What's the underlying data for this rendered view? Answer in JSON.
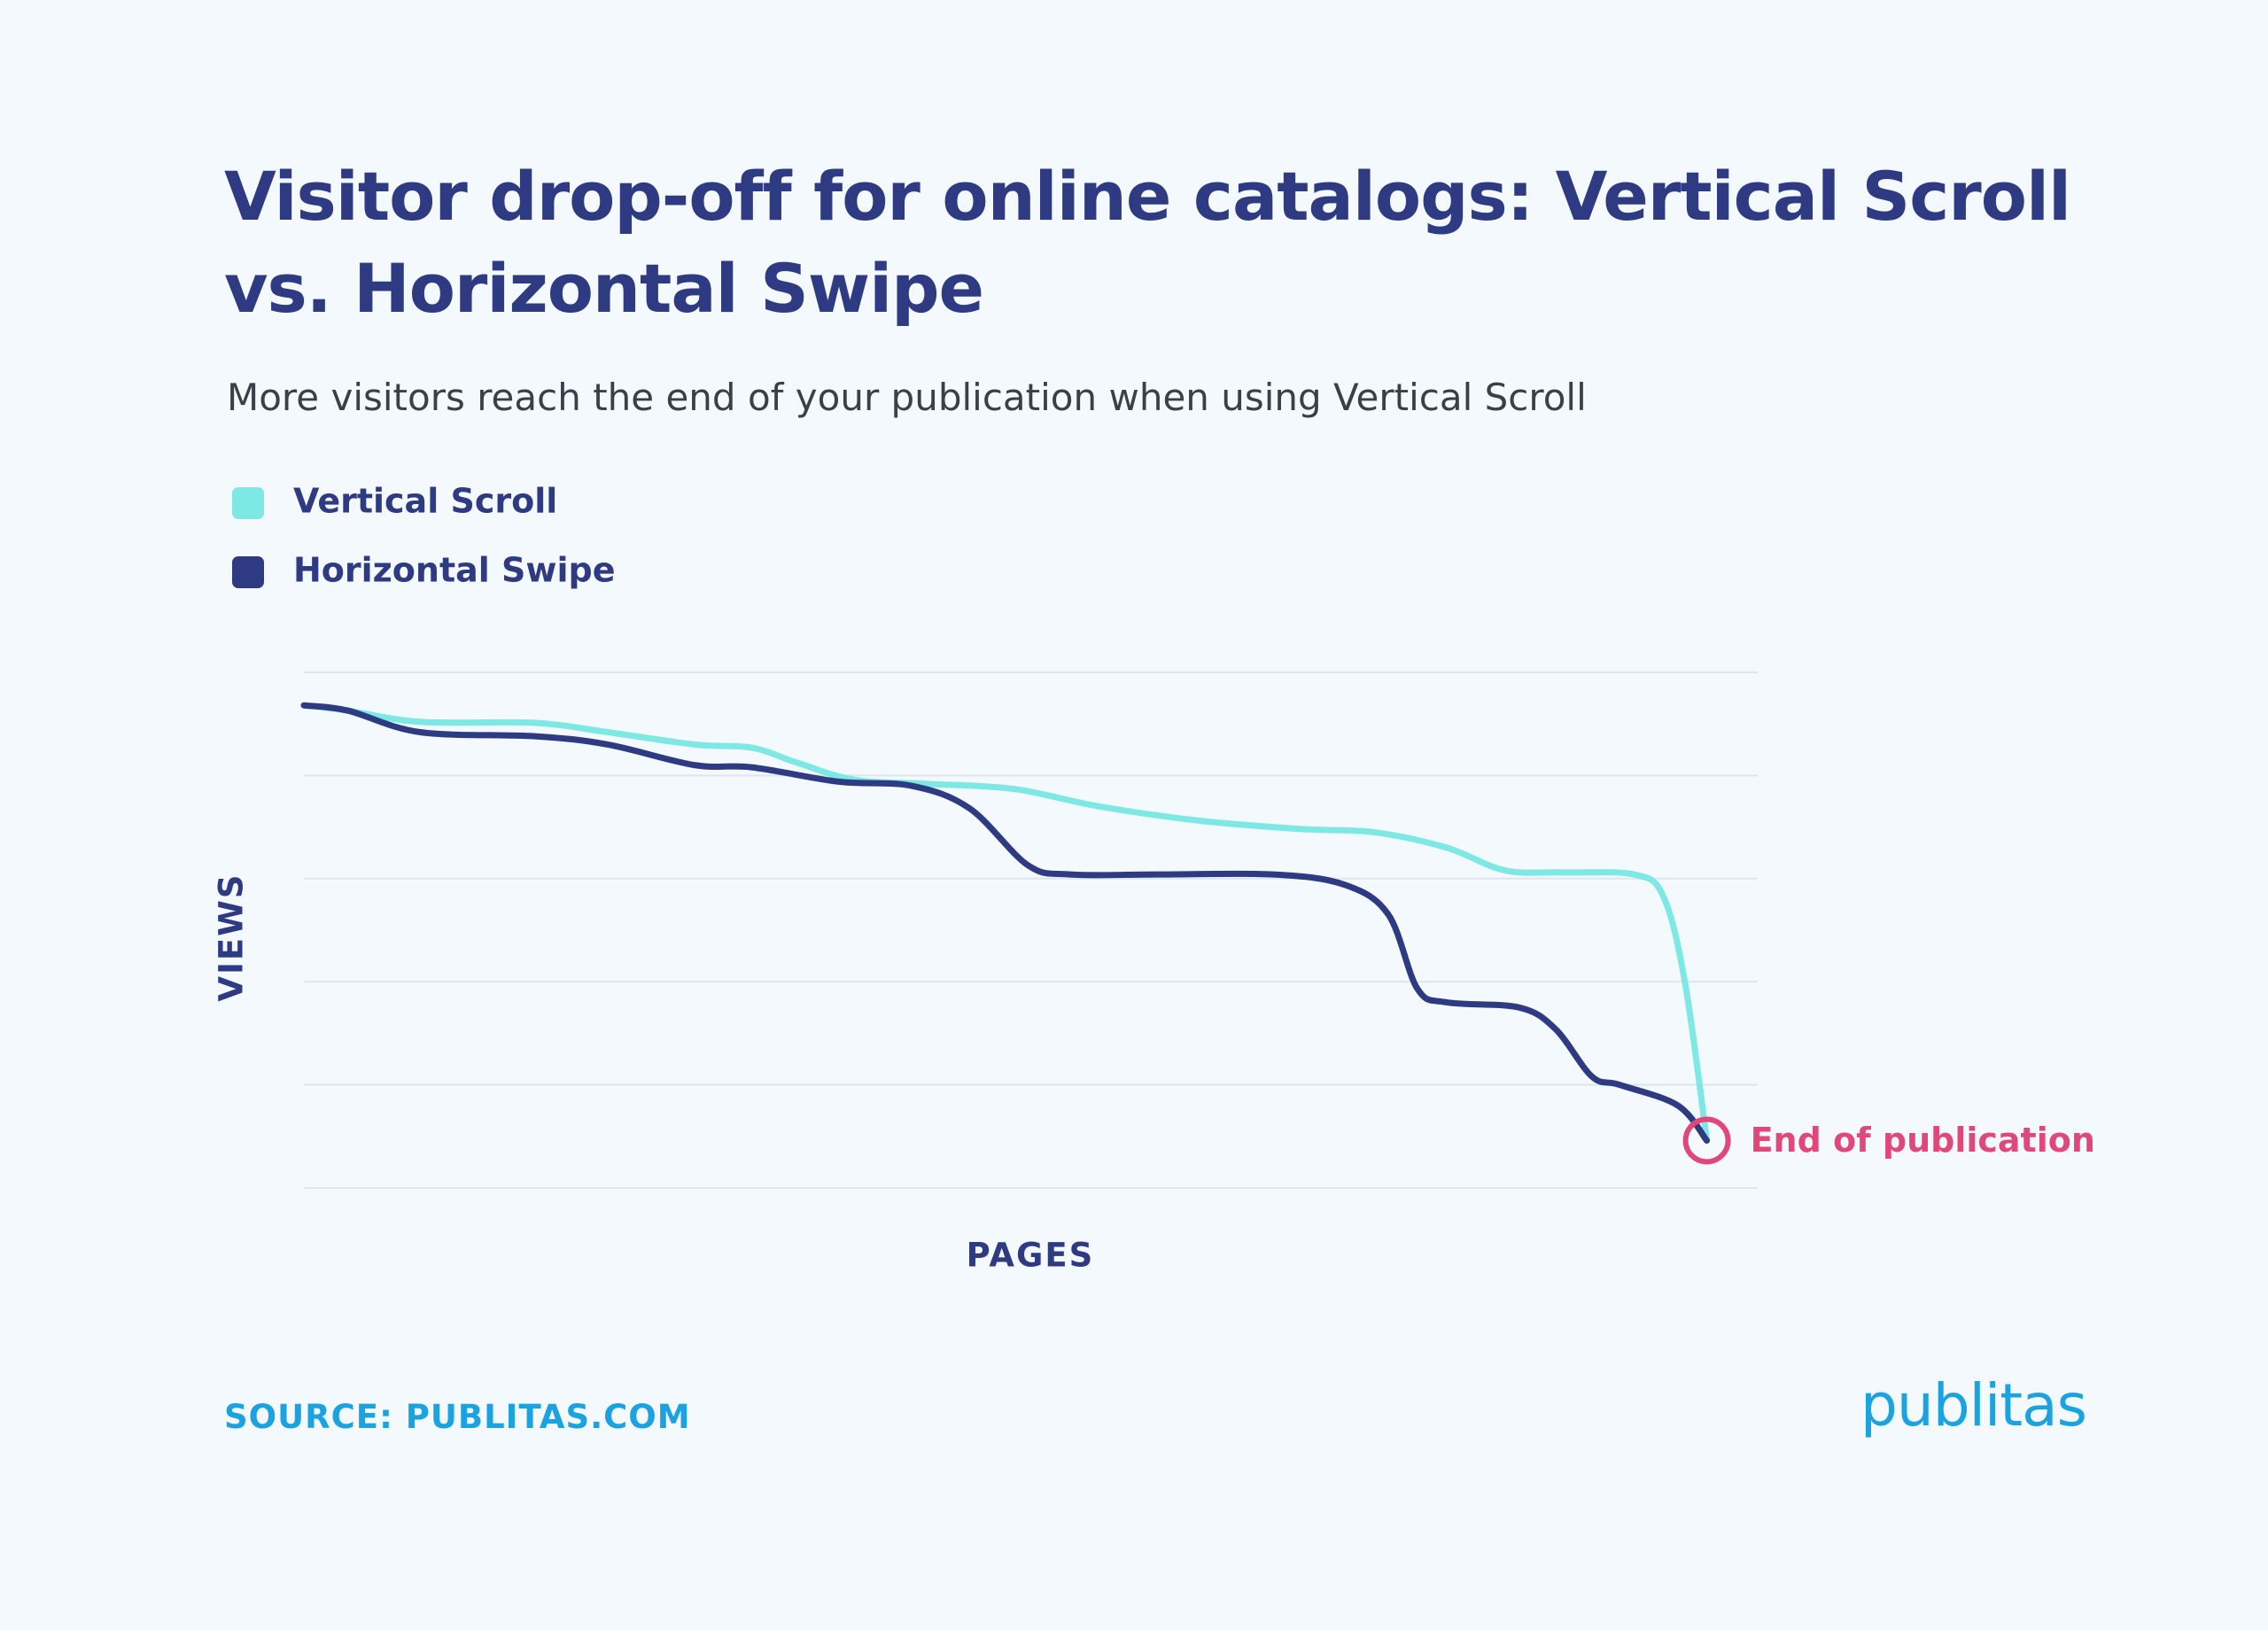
{
  "title": "Visitor drop-off for online catalogs: Vertical Scroll vs. Horizontal Swipe",
  "subtitle": "More visitors reach the end of your publication when using Vertical Scroll",
  "source": "SOURCE: PUBLITAS.COM",
  "logo": "publitas",
  "chart_data": {
    "type": "line",
    "x_label": "PAGES",
    "y_label": "VIEWS",
    "xlim": [
      0,
      100
    ],
    "ylim": [
      0,
      5
    ],
    "ygrid": [
      0,
      1,
      2,
      3,
      4,
      5
    ],
    "series": [
      {
        "name": "Vertical Scroll",
        "color": "#7de8e4",
        "x": [
          0,
          3.0,
          8.0,
          15.9,
          20.9,
          26.9,
          30.8,
          33.8,
          37.8,
          42.8,
          48.8,
          54.7,
          61.7,
          68.7,
          73.6,
          78.6,
          82.6,
          86.6,
          91.5,
          93.5,
          95.0,
          96.5
        ],
        "values": [
          4.68,
          4.63,
          4.52,
          4.51,
          4.42,
          4.3,
          4.27,
          4.13,
          3.96,
          3.92,
          3.87,
          3.7,
          3.56,
          3.48,
          3.45,
          3.3,
          3.08,
          3.06,
          3.04,
          2.83,
          1.99,
          0.46
        ]
      },
      {
        "name": "Horizontal Swipe",
        "color": "#2e3a82",
        "x": [
          0,
          3.0,
          8.0,
          15.9,
          20.9,
          26.9,
          30.8,
          36.8,
          41.8,
          45.8,
          49.8,
          52.7,
          58.7,
          66.7,
          71.6,
          74.6,
          76.6,
          78.6,
          83.6,
          86.1,
          88.6,
          90.5,
          94.5,
          96.5
        ],
        "values": [
          4.68,
          4.63,
          4.42,
          4.38,
          4.3,
          4.1,
          4.08,
          3.94,
          3.9,
          3.68,
          3.13,
          3.04,
          3.04,
          3.04,
          2.94,
          2.65,
          1.93,
          1.8,
          1.75,
          1.54,
          1.08,
          1.0,
          0.8,
          0.46
        ]
      }
    ],
    "annotation": {
      "text": "End of publication",
      "color": "#e0487a"
    }
  }
}
